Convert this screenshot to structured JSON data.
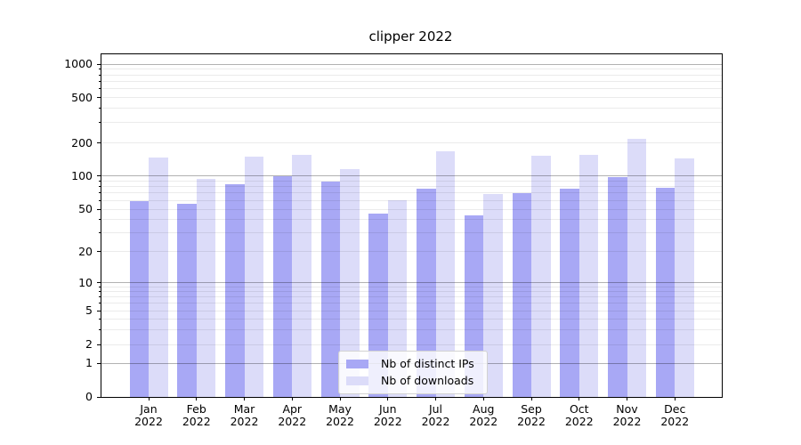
{
  "title": "clipper 2022",
  "colors": {
    "distinct_ips": "#a8a8f5",
    "downloads": "#dcdcf9",
    "major_grid": "rgba(0,0,0,0.30)",
    "minor_grid": "rgba(0,0,0,0.08)"
  },
  "legend": {
    "position": "lower center",
    "items": [
      {
        "label": "Nb of distinct IPs",
        "color_key": "distinct_ips"
      },
      {
        "label": "Nb of downloads",
        "color_key": "downloads"
      }
    ]
  },
  "chart_data": {
    "type": "bar",
    "title": "clipper 2022",
    "xlabel": "",
    "ylabel": "",
    "categories": [
      "Jan 2022",
      "Feb 2022",
      "Mar 2022",
      "Apr 2022",
      "May 2022",
      "Jun 2022",
      "Jul 2022",
      "Aug 2022",
      "Sep 2022",
      "Oct 2022",
      "Nov 2022",
      "Dec 2022"
    ],
    "series": [
      {
        "name": "Nb of distinct IPs",
        "color": "#a8a8f5",
        "values": [
          59,
          56,
          84,
          100,
          89,
          45,
          76,
          44,
          70,
          77,
          97,
          78
        ]
      },
      {
        "name": "Nb of downloads",
        "color": "#dcdcf9",
        "values": [
          148,
          93,
          150,
          154,
          115,
          60,
          168,
          68,
          152,
          155,
          215,
          144
        ]
      }
    ],
    "yscale": "symlog",
    "yticks": [
      0,
      1,
      2,
      5,
      10,
      20,
      50,
      100,
      200,
      500,
      1000
    ],
    "minor_yticks": [
      3,
      4,
      6,
      7,
      8,
      9,
      30,
      40,
      60,
      70,
      80,
      90,
      300,
      400,
      600,
      700,
      800,
      900
    ],
    "major_gridlines": [
      1,
      10,
      100,
      1000
    ],
    "ylim": [
      0,
      1200
    ],
    "grid": true,
    "legend_position": "lower center"
  }
}
